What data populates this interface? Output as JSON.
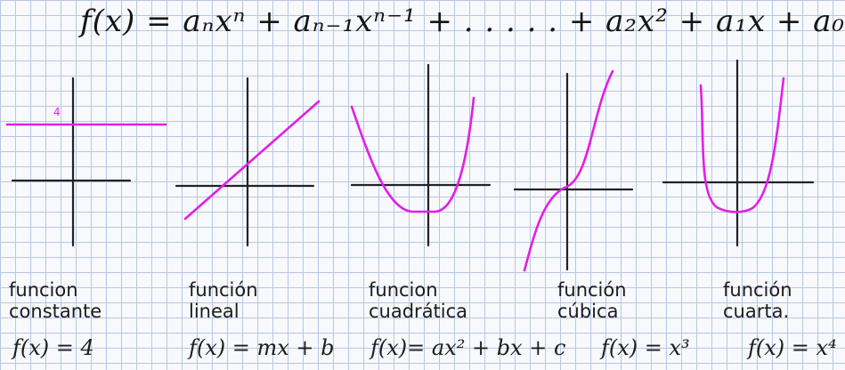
{
  "formula": "f(x) = aₙxⁿ + aₙ₋₁xⁿ⁻¹ + . . . . . + a₂x² + a₁x + a₀",
  "colors": {
    "curve": "#e41ee6",
    "axis": "#222222",
    "grid": "#b9c7e3"
  },
  "panels": [
    {
      "id": "constante",
      "caption_line1": "funcion",
      "caption_line2": "constante",
      "equation": "f(x) = 4",
      "marker": "4"
    },
    {
      "id": "lineal",
      "caption_line1": "función",
      "caption_line2": "lineal",
      "equation": "f(x) = mx + b"
    },
    {
      "id": "cuadratica",
      "caption_line1": "funcion",
      "caption_line2": "cuadrática",
      "equation": "f(x)= ax² + bx + c"
    },
    {
      "id": "cubica",
      "caption_line1": "función",
      "caption_line2": "cúbica",
      "equation": "f(x) = x³"
    },
    {
      "id": "cuarta",
      "caption_line1": "función",
      "caption_line2": "cuarta.",
      "equation": "f(x) = x⁴"
    }
  ]
}
